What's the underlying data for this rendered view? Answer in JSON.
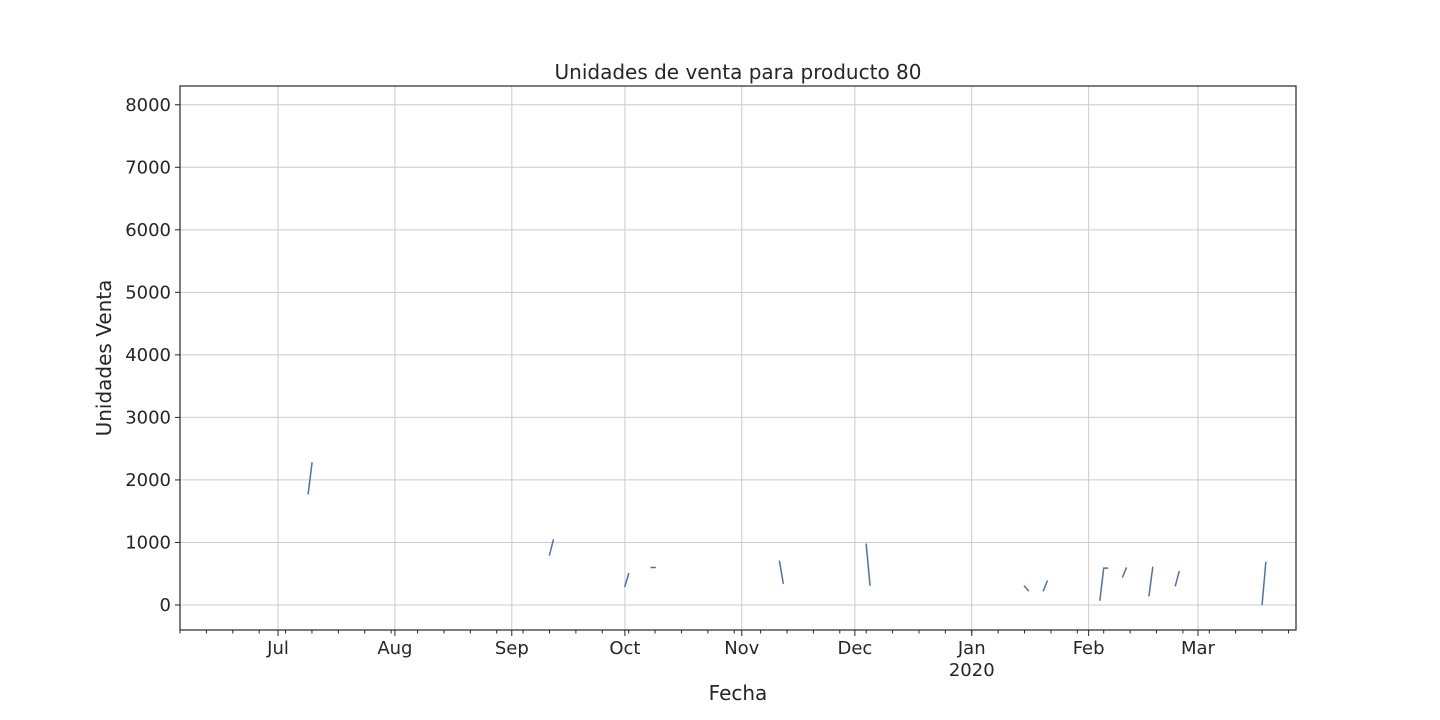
{
  "chart_data": {
    "type": "line",
    "title": "Unidades de venta para producto 80",
    "xlabel": "Fecha",
    "ylabel": "Unidades Venta",
    "xlim": [
      "2019-06-05",
      "2020-03-27"
    ],
    "ylim": [
      -400,
      8300
    ],
    "yticks": [
      0,
      1000,
      2000,
      3000,
      4000,
      5000,
      6000,
      7000,
      8000
    ],
    "xticks": [
      {
        "date": "2019-07-01",
        "label": "Jul"
      },
      {
        "date": "2019-08-01",
        "label": "Aug"
      },
      {
        "date": "2019-09-01",
        "label": "Sep"
      },
      {
        "date": "2019-10-01",
        "label": "Oct"
      },
      {
        "date": "2019-11-01",
        "label": "Nov"
      },
      {
        "date": "2019-12-01",
        "label": "Dec"
      },
      {
        "date": "2020-01-01",
        "label": "Jan",
        "sublabel": "2020"
      },
      {
        "date": "2020-02-01",
        "label": "Feb"
      },
      {
        "date": "2020-03-01",
        "label": "Mar"
      }
    ],
    "minor_tick_interval_days": 7,
    "grid": true,
    "color": "#4c72b0",
    "segments": [
      [
        {
          "x": "2019-07-09",
          "y": 1780
        },
        {
          "x": "2019-07-10",
          "y": 2270
        }
      ],
      [
        {
          "x": "2019-09-11",
          "y": 800
        },
        {
          "x": "2019-09-12",
          "y": 1040
        }
      ],
      [
        {
          "x": "2019-10-01",
          "y": 300
        },
        {
          "x": "2019-10-02",
          "y": 500
        }
      ],
      [
        {
          "x": "2019-10-08",
          "y": 600
        },
        {
          "x": "2019-10-09",
          "y": 600
        }
      ],
      [
        {
          "x": "2019-11-11",
          "y": 700
        },
        {
          "x": "2019-11-12",
          "y": 350
        }
      ],
      [
        {
          "x": "2019-12-04",
          "y": 970
        },
        {
          "x": "2019-12-05",
          "y": 320
        }
      ],
      [
        {
          "x": "2020-01-15",
          "y": 300
        },
        {
          "x": "2020-01-16",
          "y": 230
        }
      ],
      [
        {
          "x": "2020-01-20",
          "y": 230
        },
        {
          "x": "2020-01-21",
          "y": 380
        }
      ],
      [
        {
          "x": "2020-02-04",
          "y": 80
        },
        {
          "x": "2020-02-05",
          "y": 590
        },
        {
          "x": "2020-02-06",
          "y": 590
        }
      ],
      [
        {
          "x": "2020-02-10",
          "y": 450
        },
        {
          "x": "2020-02-11",
          "y": 590
        }
      ],
      [
        {
          "x": "2020-02-17",
          "y": 150
        },
        {
          "x": "2020-02-18",
          "y": 600
        }
      ],
      [
        {
          "x": "2020-02-24",
          "y": 310
        },
        {
          "x": "2020-02-25",
          "y": 530
        }
      ],
      [
        {
          "x": "2020-03-18",
          "y": 10
        },
        {
          "x": "2020-03-19",
          "y": 680
        }
      ]
    ]
  }
}
